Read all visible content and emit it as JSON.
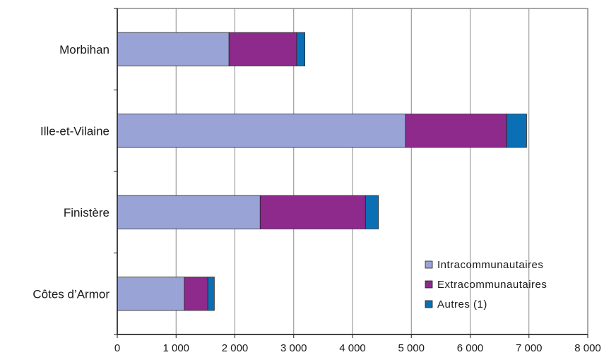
{
  "chart_data": {
    "type": "bar",
    "orientation": "horizontal",
    "stacked": true,
    "title": "",
    "xlabel": "",
    "ylabel": "",
    "categories": [
      "Morbihan",
      "Ille-et-Vilaine",
      "Finistère",
      "Côtes d’Armor"
    ],
    "series": [
      {
        "name": "Intracommunautaires",
        "color": "#99a3d6",
        "values": [
          1900,
          4900,
          2430,
          1140
        ]
      },
      {
        "name": "Extracommunautaires",
        "color": "#8e2a8c",
        "values": [
          1150,
          1720,
          1790,
          400
        ]
      },
      {
        "name": "Autres (1)",
        "color": "#0a6fb5",
        "values": [
          140,
          340,
          220,
          110
        ]
      }
    ],
    "xlim": [
      0,
      8000
    ],
    "xticks": [
      0,
      1000,
      2000,
      3000,
      4000,
      5000,
      6000,
      7000,
      8000
    ],
    "xtick_labels": [
      "0",
      "1 000",
      "2 000",
      "3 000",
      "4 000",
      "5 000",
      "6 000",
      "7 000",
      "8 000"
    ],
    "grid": "vertical",
    "legend_position": "bottom-right"
  }
}
